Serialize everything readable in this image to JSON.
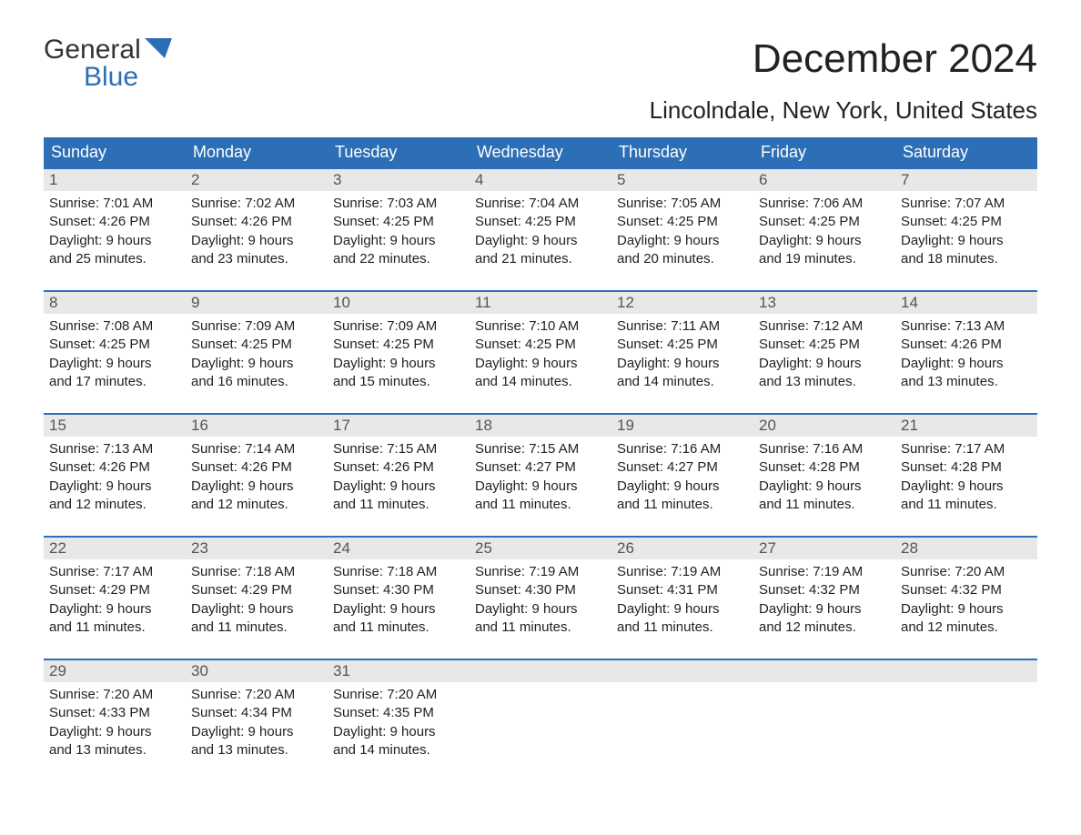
{
  "brand": {
    "word1": "General",
    "word2": "Blue"
  },
  "title": "December 2024",
  "subtitle": "Lincolndale, New York, United States",
  "header_bg": "#2d6fb7",
  "header_fg": "#ffffff",
  "daynum_bg": "#e8e8e8",
  "border_color": "#2d6fb7",
  "font_family": "Arial, Helvetica, sans-serif",
  "weekdays": [
    "Sunday",
    "Monday",
    "Tuesday",
    "Wednesday",
    "Thursday",
    "Friday",
    "Saturday"
  ],
  "weeks": [
    [
      {
        "n": "1",
        "sunrise": "Sunrise: 7:01 AM",
        "sunset": "Sunset: 4:26 PM",
        "d1": "Daylight: 9 hours",
        "d2": "and 25 minutes."
      },
      {
        "n": "2",
        "sunrise": "Sunrise: 7:02 AM",
        "sunset": "Sunset: 4:26 PM",
        "d1": "Daylight: 9 hours",
        "d2": "and 23 minutes."
      },
      {
        "n": "3",
        "sunrise": "Sunrise: 7:03 AM",
        "sunset": "Sunset: 4:25 PM",
        "d1": "Daylight: 9 hours",
        "d2": "and 22 minutes."
      },
      {
        "n": "4",
        "sunrise": "Sunrise: 7:04 AM",
        "sunset": "Sunset: 4:25 PM",
        "d1": "Daylight: 9 hours",
        "d2": "and 21 minutes."
      },
      {
        "n": "5",
        "sunrise": "Sunrise: 7:05 AM",
        "sunset": "Sunset: 4:25 PM",
        "d1": "Daylight: 9 hours",
        "d2": "and 20 minutes."
      },
      {
        "n": "6",
        "sunrise": "Sunrise: 7:06 AM",
        "sunset": "Sunset: 4:25 PM",
        "d1": "Daylight: 9 hours",
        "d2": "and 19 minutes."
      },
      {
        "n": "7",
        "sunrise": "Sunrise: 7:07 AM",
        "sunset": "Sunset: 4:25 PM",
        "d1": "Daylight: 9 hours",
        "d2": "and 18 minutes."
      }
    ],
    [
      {
        "n": "8",
        "sunrise": "Sunrise: 7:08 AM",
        "sunset": "Sunset: 4:25 PM",
        "d1": "Daylight: 9 hours",
        "d2": "and 17 minutes."
      },
      {
        "n": "9",
        "sunrise": "Sunrise: 7:09 AM",
        "sunset": "Sunset: 4:25 PM",
        "d1": "Daylight: 9 hours",
        "d2": "and 16 minutes."
      },
      {
        "n": "10",
        "sunrise": "Sunrise: 7:09 AM",
        "sunset": "Sunset: 4:25 PM",
        "d1": "Daylight: 9 hours",
        "d2": "and 15 minutes."
      },
      {
        "n": "11",
        "sunrise": "Sunrise: 7:10 AM",
        "sunset": "Sunset: 4:25 PM",
        "d1": "Daylight: 9 hours",
        "d2": "and 14 minutes."
      },
      {
        "n": "12",
        "sunrise": "Sunrise: 7:11 AM",
        "sunset": "Sunset: 4:25 PM",
        "d1": "Daylight: 9 hours",
        "d2": "and 14 minutes."
      },
      {
        "n": "13",
        "sunrise": "Sunrise: 7:12 AM",
        "sunset": "Sunset: 4:25 PM",
        "d1": "Daylight: 9 hours",
        "d2": "and 13 minutes."
      },
      {
        "n": "14",
        "sunrise": "Sunrise: 7:13 AM",
        "sunset": "Sunset: 4:26 PM",
        "d1": "Daylight: 9 hours",
        "d2": "and 13 minutes."
      }
    ],
    [
      {
        "n": "15",
        "sunrise": "Sunrise: 7:13 AM",
        "sunset": "Sunset: 4:26 PM",
        "d1": "Daylight: 9 hours",
        "d2": "and 12 minutes."
      },
      {
        "n": "16",
        "sunrise": "Sunrise: 7:14 AM",
        "sunset": "Sunset: 4:26 PM",
        "d1": "Daylight: 9 hours",
        "d2": "and 12 minutes."
      },
      {
        "n": "17",
        "sunrise": "Sunrise: 7:15 AM",
        "sunset": "Sunset: 4:26 PM",
        "d1": "Daylight: 9 hours",
        "d2": "and 11 minutes."
      },
      {
        "n": "18",
        "sunrise": "Sunrise: 7:15 AM",
        "sunset": "Sunset: 4:27 PM",
        "d1": "Daylight: 9 hours",
        "d2": "and 11 minutes."
      },
      {
        "n": "19",
        "sunrise": "Sunrise: 7:16 AM",
        "sunset": "Sunset: 4:27 PM",
        "d1": "Daylight: 9 hours",
        "d2": "and 11 minutes."
      },
      {
        "n": "20",
        "sunrise": "Sunrise: 7:16 AM",
        "sunset": "Sunset: 4:28 PM",
        "d1": "Daylight: 9 hours",
        "d2": "and 11 minutes."
      },
      {
        "n": "21",
        "sunrise": "Sunrise: 7:17 AM",
        "sunset": "Sunset: 4:28 PM",
        "d1": "Daylight: 9 hours",
        "d2": "and 11 minutes."
      }
    ],
    [
      {
        "n": "22",
        "sunrise": "Sunrise: 7:17 AM",
        "sunset": "Sunset: 4:29 PM",
        "d1": "Daylight: 9 hours",
        "d2": "and 11 minutes."
      },
      {
        "n": "23",
        "sunrise": "Sunrise: 7:18 AM",
        "sunset": "Sunset: 4:29 PM",
        "d1": "Daylight: 9 hours",
        "d2": "and 11 minutes."
      },
      {
        "n": "24",
        "sunrise": "Sunrise: 7:18 AM",
        "sunset": "Sunset: 4:30 PM",
        "d1": "Daylight: 9 hours",
        "d2": "and 11 minutes."
      },
      {
        "n": "25",
        "sunrise": "Sunrise: 7:19 AM",
        "sunset": "Sunset: 4:30 PM",
        "d1": "Daylight: 9 hours",
        "d2": "and 11 minutes."
      },
      {
        "n": "26",
        "sunrise": "Sunrise: 7:19 AM",
        "sunset": "Sunset: 4:31 PM",
        "d1": "Daylight: 9 hours",
        "d2": "and 11 minutes."
      },
      {
        "n": "27",
        "sunrise": "Sunrise: 7:19 AM",
        "sunset": "Sunset: 4:32 PM",
        "d1": "Daylight: 9 hours",
        "d2": "and 12 minutes."
      },
      {
        "n": "28",
        "sunrise": "Sunrise: 7:20 AM",
        "sunset": "Sunset: 4:32 PM",
        "d1": "Daylight: 9 hours",
        "d2": "and 12 minutes."
      }
    ],
    [
      {
        "n": "29",
        "sunrise": "Sunrise: 7:20 AM",
        "sunset": "Sunset: 4:33 PM",
        "d1": "Daylight: 9 hours",
        "d2": "and 13 minutes."
      },
      {
        "n": "30",
        "sunrise": "Sunrise: 7:20 AM",
        "sunset": "Sunset: 4:34 PM",
        "d1": "Daylight: 9 hours",
        "d2": "and 13 minutes."
      },
      {
        "n": "31",
        "sunrise": "Sunrise: 7:20 AM",
        "sunset": "Sunset: 4:35 PM",
        "d1": "Daylight: 9 hours",
        "d2": "and 14 minutes."
      },
      {
        "n": "",
        "empty": true
      },
      {
        "n": "",
        "empty": true
      },
      {
        "n": "",
        "empty": true
      },
      {
        "n": "",
        "empty": true
      }
    ]
  ]
}
